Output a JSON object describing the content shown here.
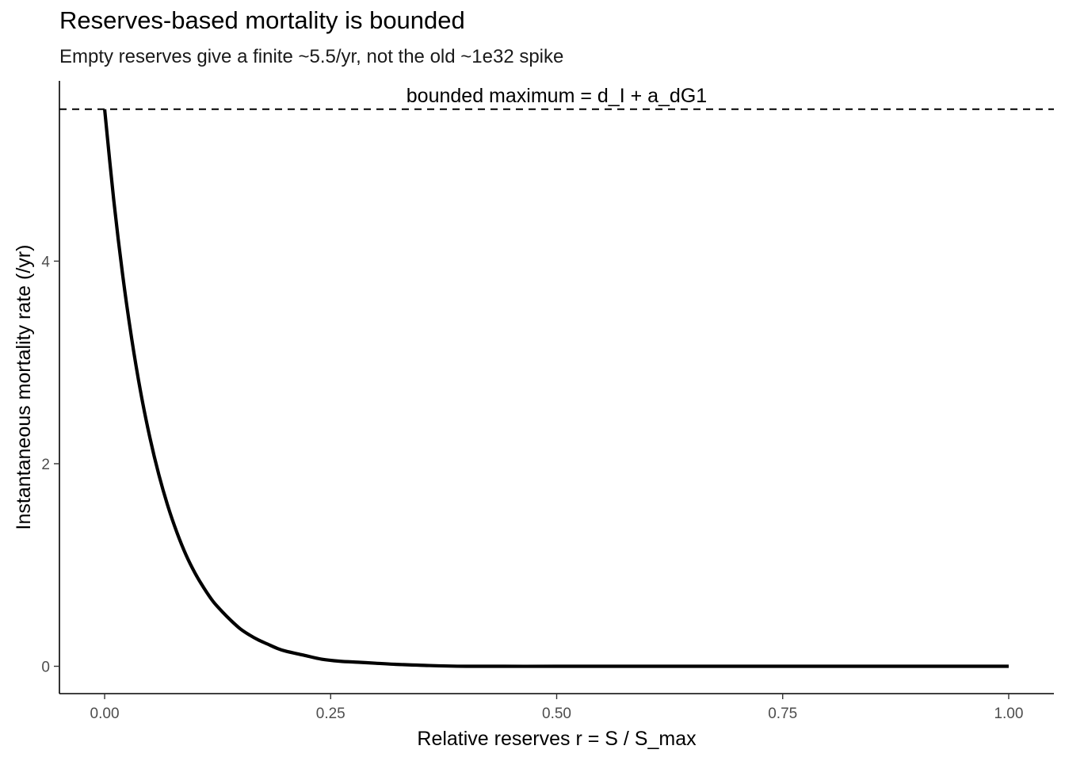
{
  "chart_data": {
    "type": "line",
    "title": "Reserves-based mortality is bounded",
    "subtitle": "Empty reserves give a finite ~5.5/yr, not the old ~1e32 spike",
    "xlabel": "Relative reserves  r = S / S_max",
    "ylabel": "Instantaneous mortality rate (/yr)",
    "xlim": [
      -0.05,
      1.05
    ],
    "ylim": [
      -0.27,
      5.78
    ],
    "x_ticks": [
      0,
      0.25,
      0.5,
      0.75,
      1.0
    ],
    "x_tick_labels": [
      "0.00",
      "0.25",
      "0.50",
      "0.75",
      "1.00"
    ],
    "y_ticks": [
      0,
      2,
      4
    ],
    "y_tick_labels": [
      "0",
      "2",
      "4"
    ],
    "grid": false,
    "series": [
      {
        "x": [
          0.0,
          0.01,
          0.02,
          0.03,
          0.04,
          0.05,
          0.06,
          0.07,
          0.08,
          0.09,
          0.1,
          0.11,
          0.12,
          0.13,
          0.14,
          0.15,
          0.16,
          0.17,
          0.18,
          0.19,
          0.2,
          0.22,
          0.24,
          0.26,
          0.28,
          0.3,
          0.32,
          0.35,
          0.4,
          0.5,
          0.6,
          0.7,
          0.8,
          0.9,
          1.0
        ],
        "values": [
          5.5,
          4.61,
          3.86,
          3.23,
          2.7,
          2.26,
          1.89,
          1.58,
          1.32,
          1.1,
          0.92,
          0.77,
          0.64,
          0.54,
          0.45,
          0.37,
          0.31,
          0.26,
          0.22,
          0.18,
          0.15,
          0.11,
          0.07,
          0.05,
          0.04,
          0.03,
          0.02,
          0.01,
          0.0,
          0.0,
          0.0,
          0.0,
          0.0,
          0.0,
          0.0
        ]
      }
    ],
    "reference_line": {
      "y": 5.5,
      "style": "dashed",
      "label": "bounded maximum = d_I + a_dG1"
    }
  }
}
